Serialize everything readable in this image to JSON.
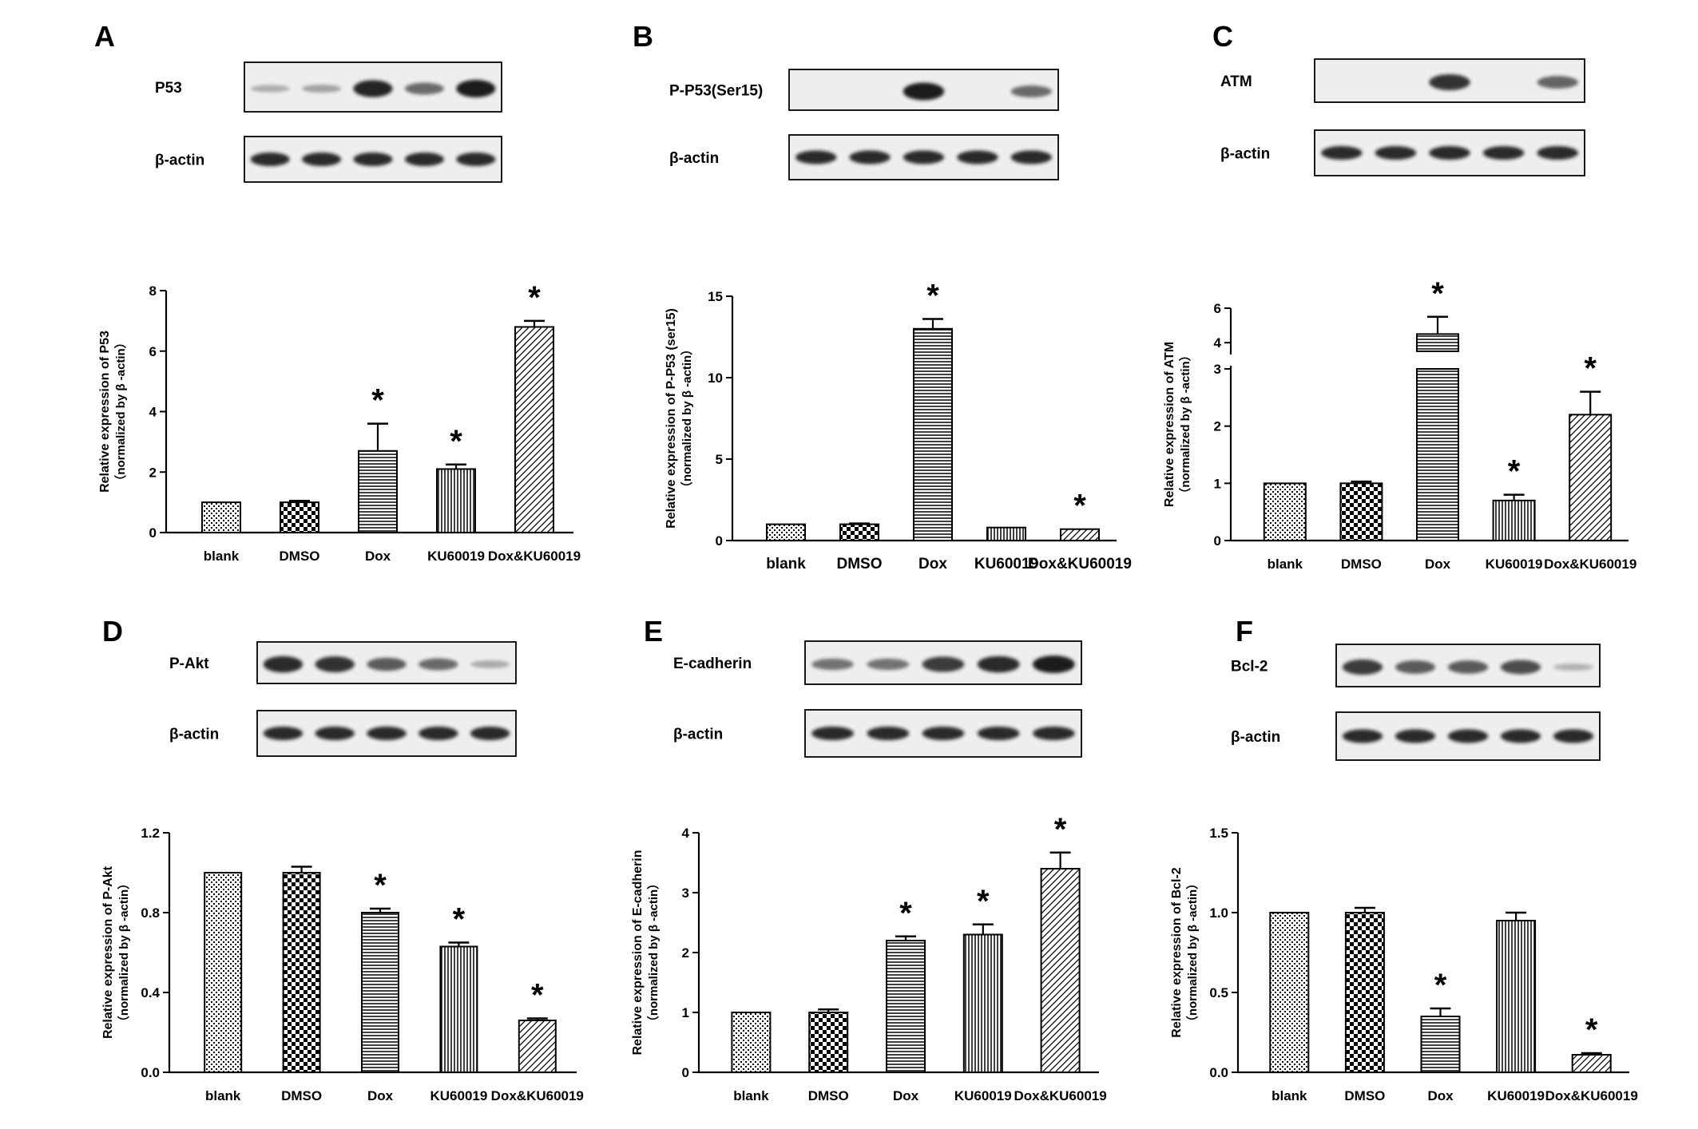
{
  "colors": {
    "ink": "#000000",
    "band": "#1a1a1a",
    "blot_bg": "#eeeeee",
    "paper": "#ffffff"
  },
  "chart_data": [
    {
      "panel": "A",
      "type": "bar",
      "blot_labels": [
        "P53",
        "β-actin"
      ],
      "blot_p53_intensity": [
        0.08,
        0.15,
        0.95,
        0.5,
        1.0
      ],
      "categories": [
        "blank",
        "DMSO",
        "Dox",
        "KU60019",
        "Dox&KU60019"
      ],
      "values": [
        1.0,
        1.0,
        2.7,
        2.1,
        6.8
      ],
      "errors": [
        0,
        0.05,
        0.9,
        0.15,
        0.2
      ],
      "significant": [
        false,
        false,
        true,
        true,
        true
      ],
      "ylabel": "Relative expression of P53",
      "ylabel2": "（normalized by β -actin）",
      "ylim": [
        0,
        8
      ],
      "yticks": [
        "0",
        "2",
        "4",
        "6",
        "8"
      ]
    },
    {
      "panel": "B",
      "type": "bar",
      "blot_labels": [
        "P-P53(Ser15)",
        "β-actin"
      ],
      "blot_p53_intensity": [
        0,
        0,
        1.0,
        0,
        0.5
      ],
      "categories": [
        "blank",
        "DMSO",
        "Dox",
        "KU60019",
        "Dox&KU60019"
      ],
      "values": [
        1.0,
        1.0,
        13.0,
        0.8,
        0.7
      ],
      "errors": [
        0,
        0.05,
        0.6,
        0,
        0
      ],
      "significant": [
        false,
        false,
        true,
        false,
        true
      ],
      "ylabel": "Relative expression of P-P53 (ser15)",
      "ylabel2": "（normalized by β -actin）",
      "ylim": [
        0,
        15
      ],
      "yticks": [
        "0",
        "5",
        "10",
        "15"
      ]
    },
    {
      "panel": "C",
      "type": "bar",
      "blot_labels": [
        "ATM",
        "β-actin"
      ],
      "blot_p53_intensity": [
        0,
        0,
        0.85,
        0,
        0.55
      ],
      "categories": [
        "blank",
        "DMSO",
        "Dox",
        "KU60019",
        "Dox&KU60019"
      ],
      "values": [
        1.0,
        1.0,
        4.5,
        0.7,
        2.2
      ],
      "errors": [
        0,
        0.03,
        1.0,
        0.1,
        0.4
      ],
      "significant": [
        false,
        false,
        true,
        true,
        true
      ],
      "ylabel": "Relative expression of ATM",
      "ylabel2": "（normalized by β -actin）",
      "ylim": [
        0,
        6
      ],
      "axis_break": [
        3,
        3.5
      ],
      "yticks_lower": [
        "0",
        "1",
        "2",
        "3"
      ],
      "yticks_upper": [
        "4",
        "6"
      ]
    },
    {
      "panel": "D",
      "type": "bar",
      "blot_labels": [
        "P-Akt",
        "β-actin"
      ],
      "blot_p53_intensity": [
        0.9,
        0.85,
        0.6,
        0.5,
        0.1
      ],
      "categories": [
        "blank",
        "DMSO",
        "Dox",
        "KU60019",
        "Dox&KU60019"
      ],
      "values": [
        1.0,
        1.0,
        0.8,
        0.63,
        0.26
      ],
      "errors": [
        0,
        0.03,
        0.02,
        0.02,
        0.01
      ],
      "significant": [
        false,
        false,
        true,
        true,
        true
      ],
      "ylabel": "Relative expression of P-Akt",
      "ylabel2": "（normalized by β -actin）",
      "ylim": [
        0,
        1.2
      ],
      "yticks": [
        "0.0",
        "0.4",
        "0.8",
        "1.2"
      ]
    },
    {
      "panel": "E",
      "type": "bar",
      "blot_labels": [
        "E-cadherin",
        "β-actin"
      ],
      "blot_p53_intensity": [
        0.45,
        0.45,
        0.8,
        0.9,
        1.0
      ],
      "categories": [
        "blank",
        "DMSO",
        "Dox",
        "KU60019",
        "Dox&KU60019"
      ],
      "values": [
        1.0,
        1.0,
        2.2,
        2.3,
        3.4
      ],
      "errors": [
        0,
        0.05,
        0.07,
        0.17,
        0.27
      ],
      "significant": [
        false,
        false,
        true,
        true,
        true
      ],
      "ylabel": "Relative expression of E-cadherin",
      "ylabel2": "（normalized by β -actin）",
      "ylim": [
        0,
        4
      ],
      "yticks": [
        "0",
        "1",
        "2",
        "3",
        "4"
      ]
    },
    {
      "panel": "F",
      "type": "bar",
      "blot_labels": [
        "Bcl-2",
        "β-actin"
      ],
      "blot_p53_intensity": [
        0.8,
        0.6,
        0.6,
        0.7,
        0.05
      ],
      "categories": [
        "blank",
        "DMSO",
        "Dox",
        "KU60019",
        "Dox&KU60019"
      ],
      "values": [
        1.0,
        1.0,
        0.35,
        0.95,
        0.11
      ],
      "errors": [
        0,
        0.03,
        0.05,
        0.05,
        0.01
      ],
      "significant": [
        false,
        false,
        true,
        false,
        true
      ],
      "ylabel": "Relative expression of Bcl-2",
      "ylabel2": "（normalized by β -actin）",
      "ylim": [
        0,
        1.5
      ],
      "yticks": [
        "0.0",
        "0.5",
        "1.0",
        "1.5"
      ]
    }
  ]
}
